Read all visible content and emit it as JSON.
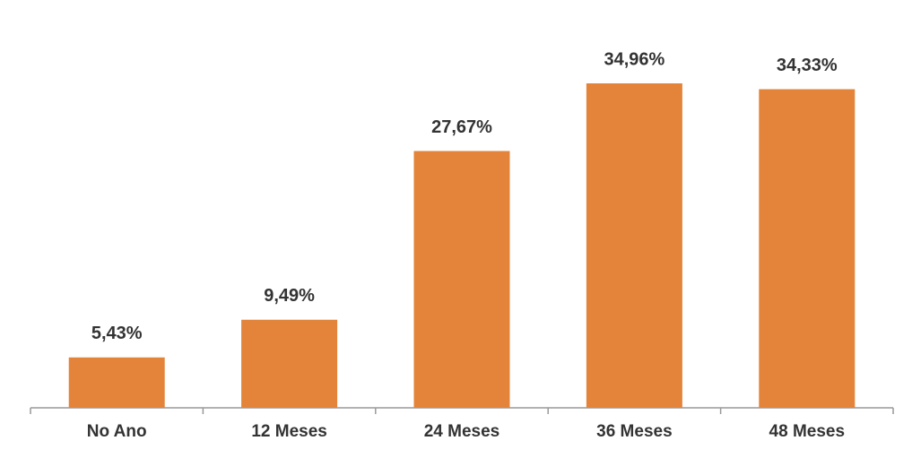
{
  "chart_data": {
    "type": "bar",
    "categories": [
      "No Ano",
      "12 Meses",
      "24 Meses",
      "36 Meses",
      "48 Meses"
    ],
    "values": [
      5.43,
      9.49,
      27.67,
      34.96,
      34.33
    ],
    "value_labels": [
      "5,43%",
      "9,49%",
      "27,67%",
      "34,96%",
      "34,33%"
    ],
    "color": "#e3843a"
  }
}
